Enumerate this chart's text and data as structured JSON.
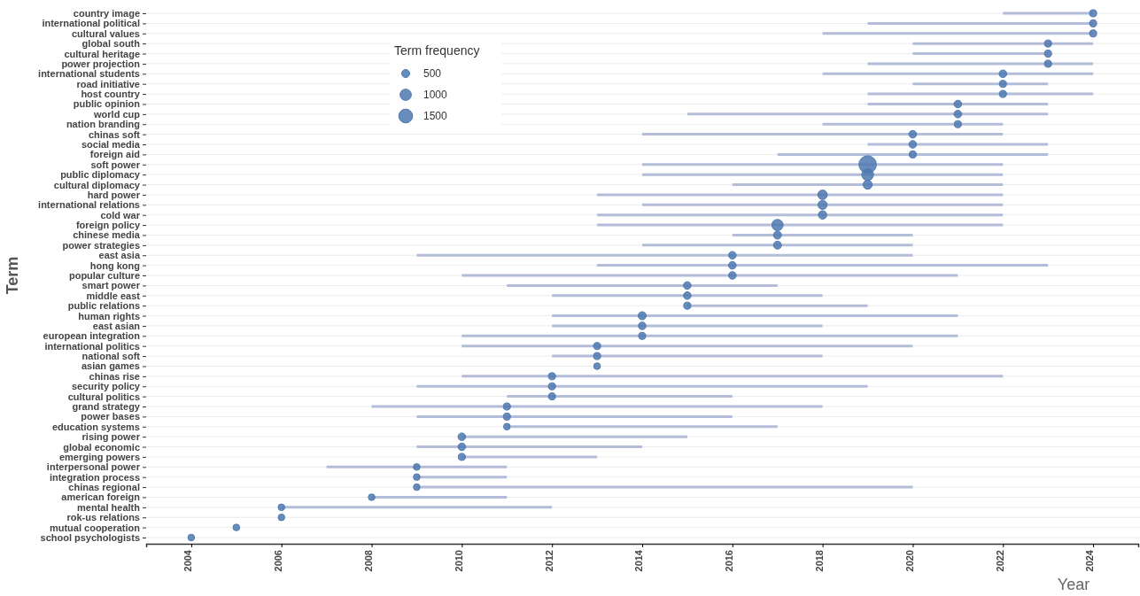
{
  "chart_data": {
    "type": "bubble",
    "orientation": "horizontal",
    "xlabel": "Year",
    "ylabel": "Term",
    "legend_title": "Term frequency",
    "grid": "y",
    "color": "#4e79b0",
    "categories": [
      "country image",
      "international political",
      "cultural values",
      "global south",
      "cultural heritage",
      "power projection",
      "international students",
      "road initiative",
      "host country",
      "public opinion",
      "world cup",
      "nation branding",
      "chinas soft",
      "social media",
      "foreign aid",
      "soft power",
      "public diplomacy",
      "cultural diplomacy",
      "hard power",
      "international relations",
      "cold war",
      "foreign policy",
      "chinese media",
      "power strategies",
      "east asia",
      "hong kong",
      "popular culture",
      "smart power",
      "middle east",
      "public relations",
      "human rights",
      "east asian",
      "european integration",
      "international politics",
      "national soft",
      "asian games",
      "chinas rise",
      "security policy",
      "cultural politics",
      "grand strategy",
      "power bases",
      "education systems",
      "rising power",
      "global economic",
      "emerging powers",
      "interpersonal power",
      "integration process",
      "chinas regional",
      "american foreign",
      "mental health",
      "rok-us relations",
      "mutual cooperation",
      "school psychologists"
    ],
    "values": [
      2024,
      2024,
      2024,
      2023,
      2023,
      2023,
      2022,
      2022,
      2022,
      2021,
      2021,
      2021,
      2020,
      2020,
      2020,
      2019,
      2019,
      2019,
      2018,
      2018,
      2018,
      2017,
      2017,
      2017,
      2016,
      2016,
      2016,
      2015,
      2015,
      2015,
      2014,
      2014,
      2014,
      2013,
      2013,
      2013,
      2012,
      2012,
      2012,
      2011,
      2011,
      2011,
      2010,
      2010,
      2010,
      2009,
      2009,
      2009,
      2008,
      2006,
      2006,
      2005,
      2004
    ],
    "errors": [
      [
        2022,
        2024
      ],
      [
        2019,
        2024
      ],
      [
        2018,
        2024
      ],
      [
        2020,
        2024
      ],
      [
        2020,
        2023
      ],
      [
        2019,
        2024
      ],
      [
        2018,
        2024
      ],
      [
        2020,
        2023
      ],
      [
        2019,
        2024
      ],
      [
        2019,
        2023
      ],
      [
        2015,
        2023
      ],
      [
        2018,
        2022
      ],
      [
        2014,
        2022
      ],
      [
        2019,
        2023
      ],
      [
        2017,
        2023
      ],
      [
        2014,
        2022
      ],
      [
        2014,
        2022
      ],
      [
        2016,
        2022
      ],
      [
        2013,
        2022
      ],
      [
        2014,
        2022
      ],
      [
        2013,
        2022
      ],
      [
        2013,
        2022
      ],
      [
        2016,
        2020
      ],
      [
        2014,
        2020
      ],
      [
        2009,
        2020
      ],
      [
        2013,
        2023
      ],
      [
        2010,
        2021
      ],
      [
        2011,
        2017
      ],
      [
        2012,
        2018
      ],
      [
        2015,
        2019
      ],
      [
        2012,
        2021
      ],
      [
        2012,
        2018
      ],
      [
        2010,
        2021
      ],
      [
        2010,
        2020
      ],
      [
        2012,
        2018
      ],
      null,
      [
        2010,
        2022
      ],
      [
        2009,
        2019
      ],
      [
        2011,
        2016
      ],
      [
        2008,
        2018
      ],
      [
        2009,
        2016
      ],
      [
        2011,
        2017
      ],
      [
        2010,
        2015
      ],
      [
        2009,
        2014
      ],
      [
        2010,
        2013
      ],
      [
        2007,
        2011
      ],
      [
        2009,
        2011
      ],
      [
        2009,
        2020
      ],
      [
        2008,
        2011
      ],
      [
        2006,
        2012
      ],
      null,
      null,
      null
    ],
    "sizes": [
      400,
      400,
      400,
      400,
      400,
      400,
      450,
      400,
      400,
      450,
      450,
      400,
      450,
      450,
      400,
      2400,
      1100,
      650,
      700,
      650,
      550,
      1000,
      500,
      500,
      450,
      450,
      450,
      450,
      450,
      400,
      500,
      450,
      400,
      400,
      400,
      350,
      400,
      400,
      400,
      400,
      400,
      350,
      450,
      450,
      400,
      350,
      350,
      350,
      350,
      350,
      350,
      350,
      350
    ],
    "size_legend": [
      500,
      1000,
      1500
    ],
    "xlim": [
      2003,
      2025
    ],
    "xticks": [
      2004,
      2006,
      2008,
      2010,
      2012,
      2014,
      2016,
      2018,
      2020,
      2022,
      2024
    ]
  }
}
